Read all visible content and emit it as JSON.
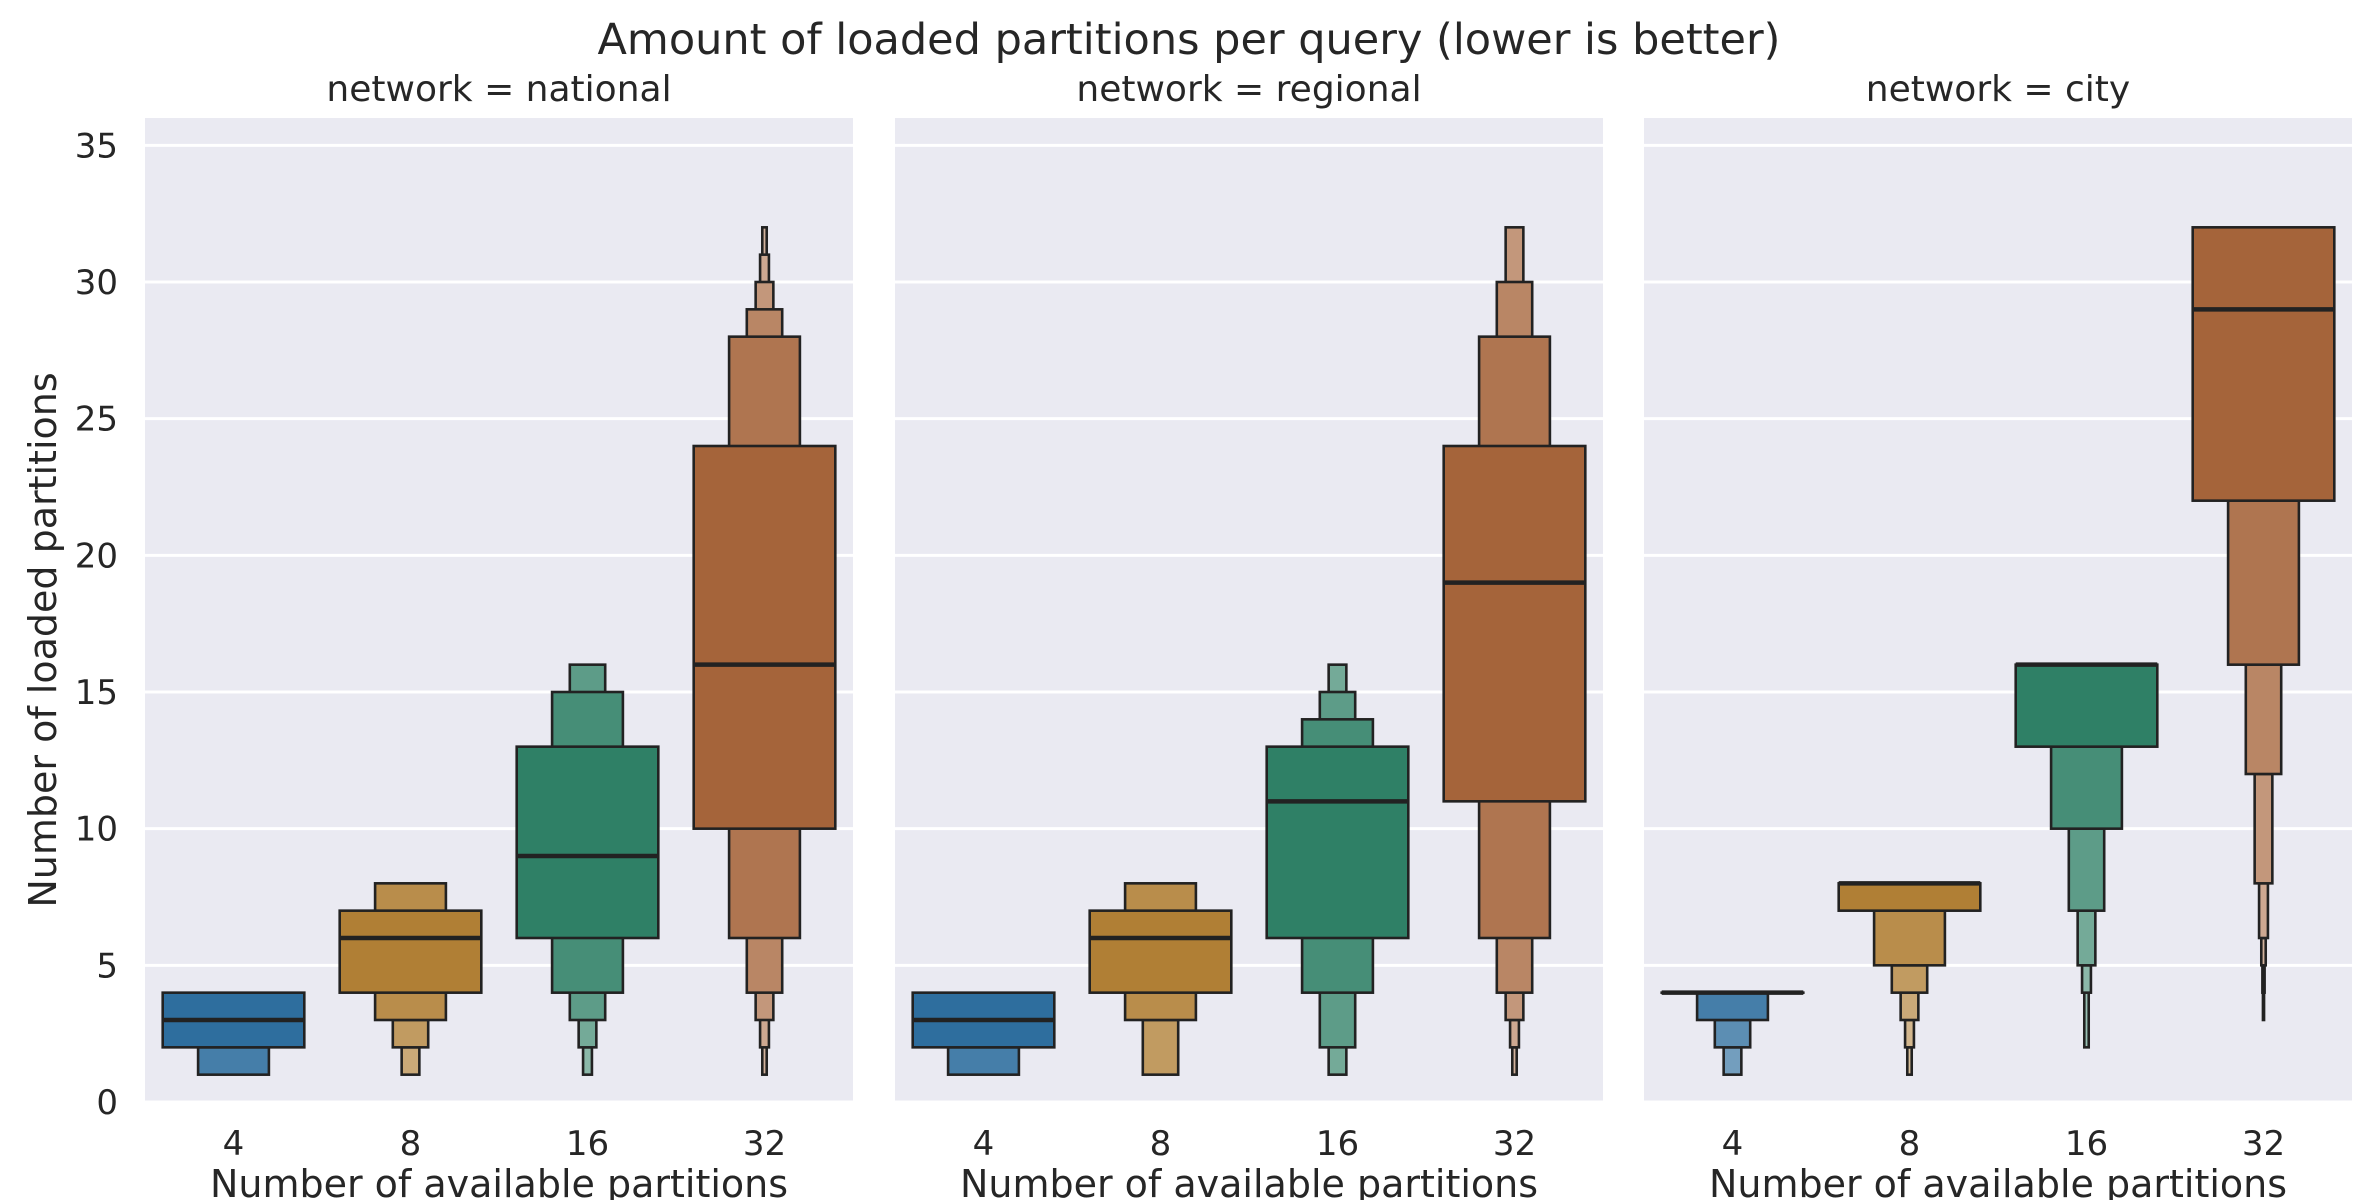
{
  "chart_data": {
    "type": "boxen",
    "title": "Amount of loaded partitions per query (lower is better)",
    "ylabel": "Number of loaded partitions",
    "xlabel": "Number of available partitions",
    "ylim": [
      0,
      36
    ],
    "yticks": [
      0,
      5,
      10,
      15,
      20,
      25,
      30,
      35
    ],
    "grid": true,
    "categories": [
      "4",
      "8",
      "16",
      "32"
    ],
    "colors": [
      "#2e6e9e",
      "#b07f35",
      "#2f8066",
      "#a5643a"
    ],
    "facets": [
      {
        "title": "network = national",
        "groups": [
          {
            "category": "4",
            "median": 3,
            "levels": [
              [
                2,
                4
              ],
              [
                1,
                2
              ]
            ]
          },
          {
            "category": "8",
            "median": 6,
            "levels": [
              [
                4,
                7
              ],
              [
                3,
                8
              ],
              [
                2,
                3
              ],
              [
                1,
                2
              ]
            ]
          },
          {
            "category": "16",
            "median": 9,
            "levels": [
              [
                6,
                13
              ],
              [
                4,
                15
              ],
              [
                3,
                16
              ],
              [
                2,
                3
              ],
              [
                1,
                2
              ]
            ]
          },
          {
            "category": "32",
            "median": 16,
            "levels": [
              [
                10,
                24
              ],
              [
                6,
                28
              ],
              [
                4,
                29
              ],
              [
                3,
                30
              ],
              [
                2,
                31
              ],
              [
                1,
                32
              ]
            ]
          }
        ]
      },
      {
        "title": "network = regional",
        "groups": [
          {
            "category": "4",
            "median": 3,
            "levels": [
              [
                2,
                4
              ],
              [
                1,
                2
              ]
            ]
          },
          {
            "category": "8",
            "median": 6,
            "levels": [
              [
                4,
                7
              ],
              [
                3,
                8
              ],
              [
                1,
                3
              ]
            ]
          },
          {
            "category": "16",
            "median": 11,
            "levels": [
              [
                6,
                13
              ],
              [
                4,
                14
              ],
              [
                2,
                15
              ],
              [
                1,
                16
              ]
            ]
          },
          {
            "category": "32",
            "median": 19,
            "levels": [
              [
                11,
                24
              ],
              [
                6,
                28
              ],
              [
                4,
                30
              ],
              [
                3,
                32
              ],
              [
                2,
                3
              ],
              [
                1,
                2
              ]
            ]
          }
        ]
      },
      {
        "title": "network = city",
        "groups": [
          {
            "category": "4",
            "median": 4,
            "levels": [
              [
                4,
                4
              ],
              [
                3,
                4
              ],
              [
                2,
                3
              ],
              [
                1,
                2
              ]
            ]
          },
          {
            "category": "8",
            "median": 8,
            "levels": [
              [
                7,
                8
              ],
              [
                5,
                7
              ],
              [
                4,
                5
              ],
              [
                3,
                4
              ],
              [
                2,
                3
              ],
              [
                1,
                2
              ]
            ]
          },
          {
            "category": "16",
            "median": 16,
            "levels": [
              [
                13,
                16
              ],
              [
                10,
                13
              ],
              [
                7,
                10
              ],
              [
                5,
                7
              ],
              [
                4,
                5
              ],
              [
                2,
                4
              ]
            ]
          },
          {
            "category": "32",
            "median": 29,
            "levels": [
              [
                22,
                32
              ],
              [
                16,
                22
              ],
              [
                12,
                16
              ],
              [
                8,
                12
              ],
              [
                6,
                8
              ],
              [
                5,
                6
              ],
              [
                4,
                5
              ],
              [
                3,
                4
              ]
            ]
          }
        ]
      }
    ]
  }
}
